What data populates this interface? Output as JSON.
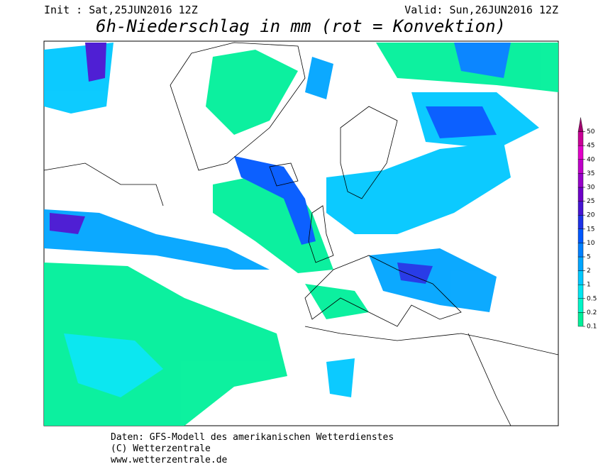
{
  "header": {
    "init": "Init : Sat,25JUN2016 12Z",
    "valid": "Valid: Sun,26JUN2016 12Z",
    "title": "6h-Niederschlag in mm (rot = Konvektion)"
  },
  "legend": {
    "levels": [
      0.1,
      0.2,
      0.5,
      1,
      2,
      5,
      10,
      15,
      20,
      25,
      30,
      35,
      40,
      45,
      50
    ],
    "colors": [
      "#00f09a",
      "#00f5c8",
      "#00e6f0",
      "#00c8ff",
      "#00a5ff",
      "#0080ff",
      "#0058ff",
      "#1e32e6",
      "#4614d2",
      "#6e00c8",
      "#9600c8",
      "#be00c8",
      "#e100c8",
      "#c80096",
      "#a0006e"
    ]
  },
  "footer": {
    "lines": [
      "Daten: GFS-Modell des amerikanischen Wetterdienstes",
      "(C) Wetterzentrale",
      "www.wetterzentrale.de"
    ]
  }
}
